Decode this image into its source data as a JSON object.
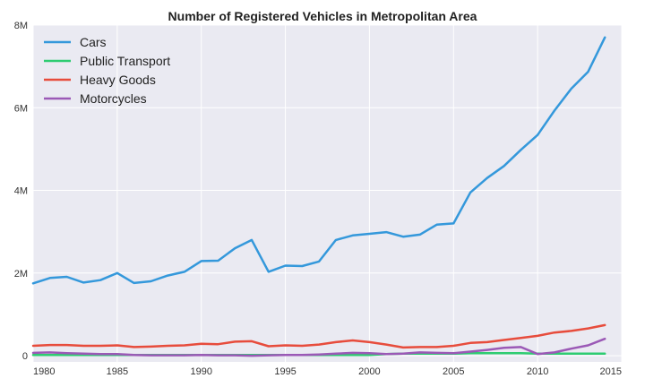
{
  "chart_data": {
    "type": "line",
    "title": "Number of Registered Vehicles in Metropolitan Area",
    "xlabel": "",
    "ylabel": "",
    "xlim": [
      1980,
      2015
    ],
    "ylim": [
      -150000,
      8000000
    ],
    "x_ticks": [
      1980,
      1985,
      1990,
      1995,
      2000,
      2005,
      2010,
      2015
    ],
    "x_tick_labels": [
      "1980",
      "1985",
      "1990",
      "1995",
      "2000",
      "2005",
      "2010",
      "2015"
    ],
    "y_ticks": [
      0,
      2000000,
      4000000,
      6000000,
      8000000
    ],
    "y_tick_labels": [
      "0",
      "2M",
      "4M",
      "6M",
      "8M"
    ],
    "grid": true,
    "legend_position": "upper-left",
    "background": "#eaeaf2",
    "x": [
      1980,
      1981,
      1982,
      1983,
      1984,
      1985,
      1986,
      1987,
      1988,
      1989,
      1990,
      1991,
      1992,
      1993,
      1994,
      1995,
      1996,
      1997,
      1998,
      1999,
      2000,
      2001,
      2002,
      2003,
      2004,
      2005,
      2006,
      2007,
      2008,
      2009,
      2010,
      2011,
      2012,
      2013,
      2014
    ],
    "series": [
      {
        "name": "Cars",
        "color": "#3498db",
        "values": [
          1750000,
          1880000,
          1910000,
          1770000,
          1830000,
          2000000,
          1760000,
          1800000,
          1940000,
          2030000,
          2290000,
          2300000,
          2600000,
          2800000,
          2030000,
          2180000,
          2170000,
          2280000,
          2800000,
          2910000,
          2950000,
          2990000,
          2880000,
          2930000,
          3170000,
          3200000,
          3950000,
          4300000,
          4590000,
          4980000,
          5340000,
          5930000,
          6460000,
          6870000,
          7700000
        ]
      },
      {
        "name": "Public Transport",
        "color": "#2ecc71",
        "values": [
          20000,
          20000,
          20000,
          20000,
          20000,
          20000,
          20000,
          20000,
          20000,
          20000,
          20000,
          20000,
          20000,
          20000,
          20000,
          20000,
          20000,
          20000,
          20000,
          20000,
          20000,
          40000,
          50000,
          50000,
          50000,
          50000,
          60000,
          60000,
          60000,
          60000,
          50000,
          50000,
          50000,
          50000,
          50000
        ]
      },
      {
        "name": "Heavy Goods",
        "color": "#e74c3c",
        "values": [
          240000,
          260000,
          260000,
          240000,
          240000,
          250000,
          210000,
          220000,
          240000,
          250000,
          290000,
          280000,
          340000,
          350000,
          230000,
          250000,
          240000,
          270000,
          330000,
          370000,
          330000,
          270000,
          200000,
          210000,
          210000,
          240000,
          310000,
          330000,
          380000,
          430000,
          480000,
          560000,
          600000,
          660000,
          740000
        ]
      },
      {
        "name": "Motorcycles",
        "color": "#9b59b6",
        "values": [
          70000,
          80000,
          60000,
          50000,
          40000,
          40000,
          20000,
          10000,
          10000,
          10000,
          20000,
          10000,
          10000,
          0,
          10000,
          20000,
          20000,
          30000,
          50000,
          70000,
          60000,
          40000,
          50000,
          80000,
          70000,
          60000,
          100000,
          140000,
          190000,
          210000,
          40000,
          80000,
          170000,
          250000,
          410000
        ]
      }
    ]
  }
}
